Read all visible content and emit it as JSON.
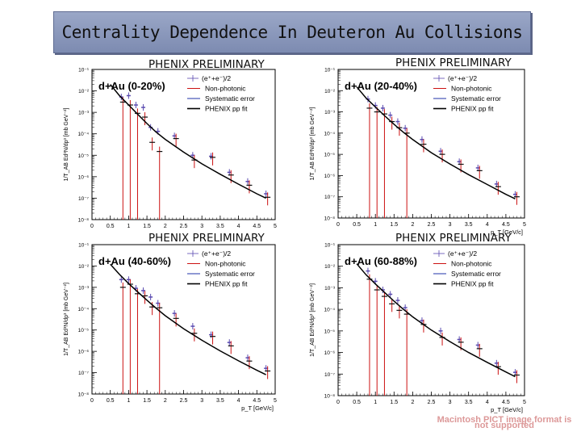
{
  "page_title": "Centrality Dependence In Deuteron Au Collisions",
  "watermark_text": "Macintosh PICT image format is not supported",
  "chart_data": [
    {
      "type": "scatter",
      "banner": "PHENIX PRELIMINARY",
      "title": "d+Au (0-20%)",
      "xlabel": "",
      "ylabel": "1/T_AB Ed³N/dp³ [mb GeV⁻²]",
      "xlim": [
        0,
        5
      ],
      "ylim_log10": [
        -8,
        -1
      ],
      "x_ticks": [
        "0",
        "0.5",
        "1",
        "1.5",
        "2",
        "2.5",
        "3",
        "3.5",
        "4",
        "4.5",
        "5"
      ],
      "y_ticks": [
        "10⁻¹",
        "10⁻²",
        "10⁻³",
        "10⁻⁴",
        "10⁻⁵",
        "10⁻⁶",
        "10⁻⁷",
        "10⁻⁸"
      ],
      "legend": [
        "(e⁺+e⁻)/2",
        "Non-photonic",
        "Systematic error",
        "PHENIX pp fit"
      ],
      "series": [
        {
          "legend_index": 0,
          "x": [
            0.8,
            1.0,
            1.2,
            1.4,
            1.6,
            1.8,
            2.25,
            2.75,
            3.25,
            3.75,
            4.25,
            4.75
          ],
          "y": [
            0.0052,
            0.006,
            0.0022,
            0.0017,
            0.0002,
            0.00013,
            8e-05,
            1e-05,
            9e-06,
            1.6e-06,
            6e-07,
            1.6e-07
          ]
        },
        {
          "legend_index": 1,
          "x": [
            0.8,
            1.0,
            1.2,
            1.4,
            1.6,
            1.8,
            2.25,
            2.75,
            3.25,
            3.75,
            4.25,
            4.75
          ],
          "y": [
            0.003,
            0.0022,
            0.0009,
            0.0006,
            4e-05,
            1.5e-05,
            6e-05,
            6e-06,
            8e-06,
            1.2e-06,
            4e-07,
            1.1e-07
          ]
        },
        {
          "legend_index": 3,
          "x": [
            0.5,
            0.75,
            1.0,
            1.25,
            1.5,
            1.75,
            2.0,
            2.5,
            3.0,
            3.5,
            4.0,
            4.5,
            4.75
          ],
          "y": [
            0.02,
            0.006,
            0.0022,
            0.0008,
            0.0003,
            0.00012,
            5.5e-05,
            1.4e-05,
            4e-06,
            1.3e-06,
            4.5e-07,
            1.6e-07,
            1e-07
          ]
        }
      ]
    },
    {
      "type": "scatter",
      "banner": "PHENIX PRELIMINARY",
      "title": "d+Au (20-40%)",
      "xlabel": "p_T [GeV/c]",
      "ylabel": "1/T_AB Ed³N/dp³ [mb GeV⁻²]",
      "xlim": [
        0,
        5
      ],
      "ylim_log10": [
        -8,
        -1
      ],
      "x_ticks": [
        "0",
        "0.5",
        "1",
        "1.5",
        "2",
        "2.5",
        "3",
        "3.5",
        "4",
        "4.5",
        "5"
      ],
      "y_ticks": [
        "10⁻¹",
        "10⁻²",
        "10⁻³",
        "10⁻⁴",
        "10⁻⁵",
        "10⁻⁶",
        "10⁻⁷",
        "10⁻⁸"
      ],
      "legend": [
        "(e⁺+e⁻)/2",
        "Non-photonic",
        "Systematic error",
        "PHENIX pp fit"
      ],
      "series": [
        {
          "legend_index": 0,
          "x": [
            0.8,
            1.0,
            1.2,
            1.4,
            1.6,
            1.8,
            2.25,
            2.75,
            3.25,
            3.75,
            4.25,
            4.75
          ],
          "y": [
            0.004,
            0.002,
            0.0015,
            0.0007,
            0.00035,
            0.00017,
            5e-05,
            1.4e-05,
            4.5e-06,
            2.3e-06,
            4e-07,
            1.3e-07
          ]
        },
        {
          "legend_index": 1,
          "x": [
            0.8,
            1.0,
            1.2,
            1.4,
            1.6,
            1.8,
            2.25,
            2.75,
            3.25,
            3.75,
            4.25,
            4.75
          ],
          "y": [
            0.0015,
            0.001,
            0.0008,
            0.00035,
            0.00018,
            0.0001,
            3e-05,
            1e-05,
            3.4e-06,
            1.7e-06,
            3e-07,
            1e-07
          ]
        },
        {
          "legend_index": 3,
          "x": [
            0.5,
            0.75,
            1.0,
            1.25,
            1.5,
            1.75,
            2.0,
            2.5,
            3.0,
            3.5,
            4.0,
            4.5,
            4.75
          ],
          "y": [
            0.015,
            0.0045,
            0.0017,
            0.00065,
            0.00026,
            0.00011,
            5e-05,
            1.2e-05,
            3.5e-06,
            1.1e-06,
            3.8e-07,
            1.3e-07,
            8e-08
          ]
        }
      ]
    },
    {
      "type": "scatter",
      "banner": "PHENIX PRELIMINARY",
      "title": "d+Au (40-60%)",
      "xlabel": "p_T [GeV/c]",
      "ylabel": "1/T_AB Ed³N/dp³ [mb GeV⁻²]",
      "xlim": [
        0,
        5
      ],
      "ylim_log10": [
        -8,
        -1
      ],
      "x_ticks": [
        "0",
        "0.5",
        "1",
        "1.5",
        "2",
        "2.5",
        "3",
        "3.5",
        "4",
        "4.5",
        "5"
      ],
      "y_ticks": [
        "10⁻¹",
        "10⁻²",
        "10⁻³",
        "10⁻⁴",
        "10⁻⁵",
        "10⁻⁶",
        "10⁻⁷",
        "10⁻⁸"
      ],
      "legend": [
        "(e⁺+e⁻)/2",
        "Non-photonic",
        "Systematic error",
        "PHENIX pp fit"
      ],
      "series": [
        {
          "legend_index": 0,
          "x": [
            0.8,
            1.0,
            1.2,
            1.4,
            1.6,
            1.8,
            2.25,
            2.75,
            3.25,
            3.75,
            4.25,
            4.75
          ],
          "y": [
            0.0023,
            0.0023,
            0.0009,
            0.0007,
            0.00035,
            0.00018,
            6e-05,
            1.5e-05,
            6e-06,
            2.6e-06,
            5e-07,
            1.6e-07
          ]
        },
        {
          "legend_index": 1,
          "x": [
            0.8,
            1.0,
            1.2,
            1.4,
            1.6,
            1.8,
            2.25,
            2.75,
            3.25,
            3.75,
            4.25,
            4.75
          ],
          "y": [
            0.001,
            0.0014,
            0.0005,
            0.0004,
            0.00012,
            0.00011,
            3.5e-05,
            7e-06,
            5e-06,
            1.8e-06,
            3.5e-07,
            1.2e-07
          ]
        },
        {
          "legend_index": 3,
          "x": [
            0.5,
            0.75,
            1.0,
            1.25,
            1.5,
            1.75,
            2.0,
            2.5,
            3.0,
            3.5,
            4.0,
            4.5,
            4.75
          ],
          "y": [
            0.012,
            0.004,
            0.0015,
            0.0006,
            0.00025,
            0.000105,
            4.7e-05,
            1.15e-05,
            3.3e-06,
            1.05e-06,
            3.6e-07,
            1.3e-07,
            8e-08
          ]
        }
      ]
    },
    {
      "type": "scatter",
      "banner": "PHENIX PRELIMINARY",
      "title": "d+Au (60-88%)",
      "xlabel": "p_T [GeV/c]",
      "ylabel": "1/T_AB Ed³N/dp³ [mb GeV⁻²]",
      "xlim": [
        0,
        5
      ],
      "ylim_log10": [
        -8,
        -1
      ],
      "x_ticks": [
        "0",
        "0.5",
        "1",
        "1.5",
        "2",
        "2.5",
        "3",
        "3.5",
        "4",
        "4.5",
        "5"
      ],
      "y_ticks": [
        "10⁻¹",
        "10⁻²",
        "10⁻³",
        "10⁻⁴",
        "10⁻⁵",
        "10⁻⁶",
        "10⁻⁷",
        "10⁻⁸"
      ],
      "legend": [
        "(e⁺+e⁻)/2",
        "Non-photonic",
        "Systematic error",
        "PHENIX pp fit"
      ],
      "series": [
        {
          "legend_index": 0,
          "x": [
            0.8,
            1.0,
            1.2,
            1.4,
            1.6,
            1.8,
            2.25,
            2.75,
            3.25,
            3.75,
            4.25,
            4.75
          ],
          "y": [
            0.006,
            0.002,
            0.0008,
            0.0005,
            0.00026,
            0.00012,
            3e-05,
            1e-05,
            4e-06,
            2.2e-06,
            3.2e-07,
            1.2e-07
          ]
        },
        {
          "legend_index": 1,
          "x": [
            0.8,
            1.0,
            1.2,
            1.4,
            1.6,
            1.8,
            2.25,
            2.75,
            3.25,
            3.75,
            4.25,
            4.75
          ],
          "y": [
            0.0025,
            0.0008,
            0.0004,
            0.00018,
            9e-05,
            6e-05,
            2e-05,
            5e-06,
            3e-06,
            1.5e-06,
            2.2e-07,
            9e-08
          ]
        },
        {
          "legend_index": 3,
          "x": [
            0.5,
            0.75,
            1.0,
            1.25,
            1.5,
            1.75,
            2.0,
            2.5,
            3.0,
            3.5,
            4.0,
            4.5,
            4.75
          ],
          "y": [
            0.013,
            0.004,
            0.0015,
            0.0006,
            0.00024,
            0.0001,
            4.5e-05,
            1.1e-05,
            3.2e-06,
            1e-06,
            3.5e-07,
            1.25e-07,
            7.5e-08
          ]
        }
      ]
    }
  ]
}
